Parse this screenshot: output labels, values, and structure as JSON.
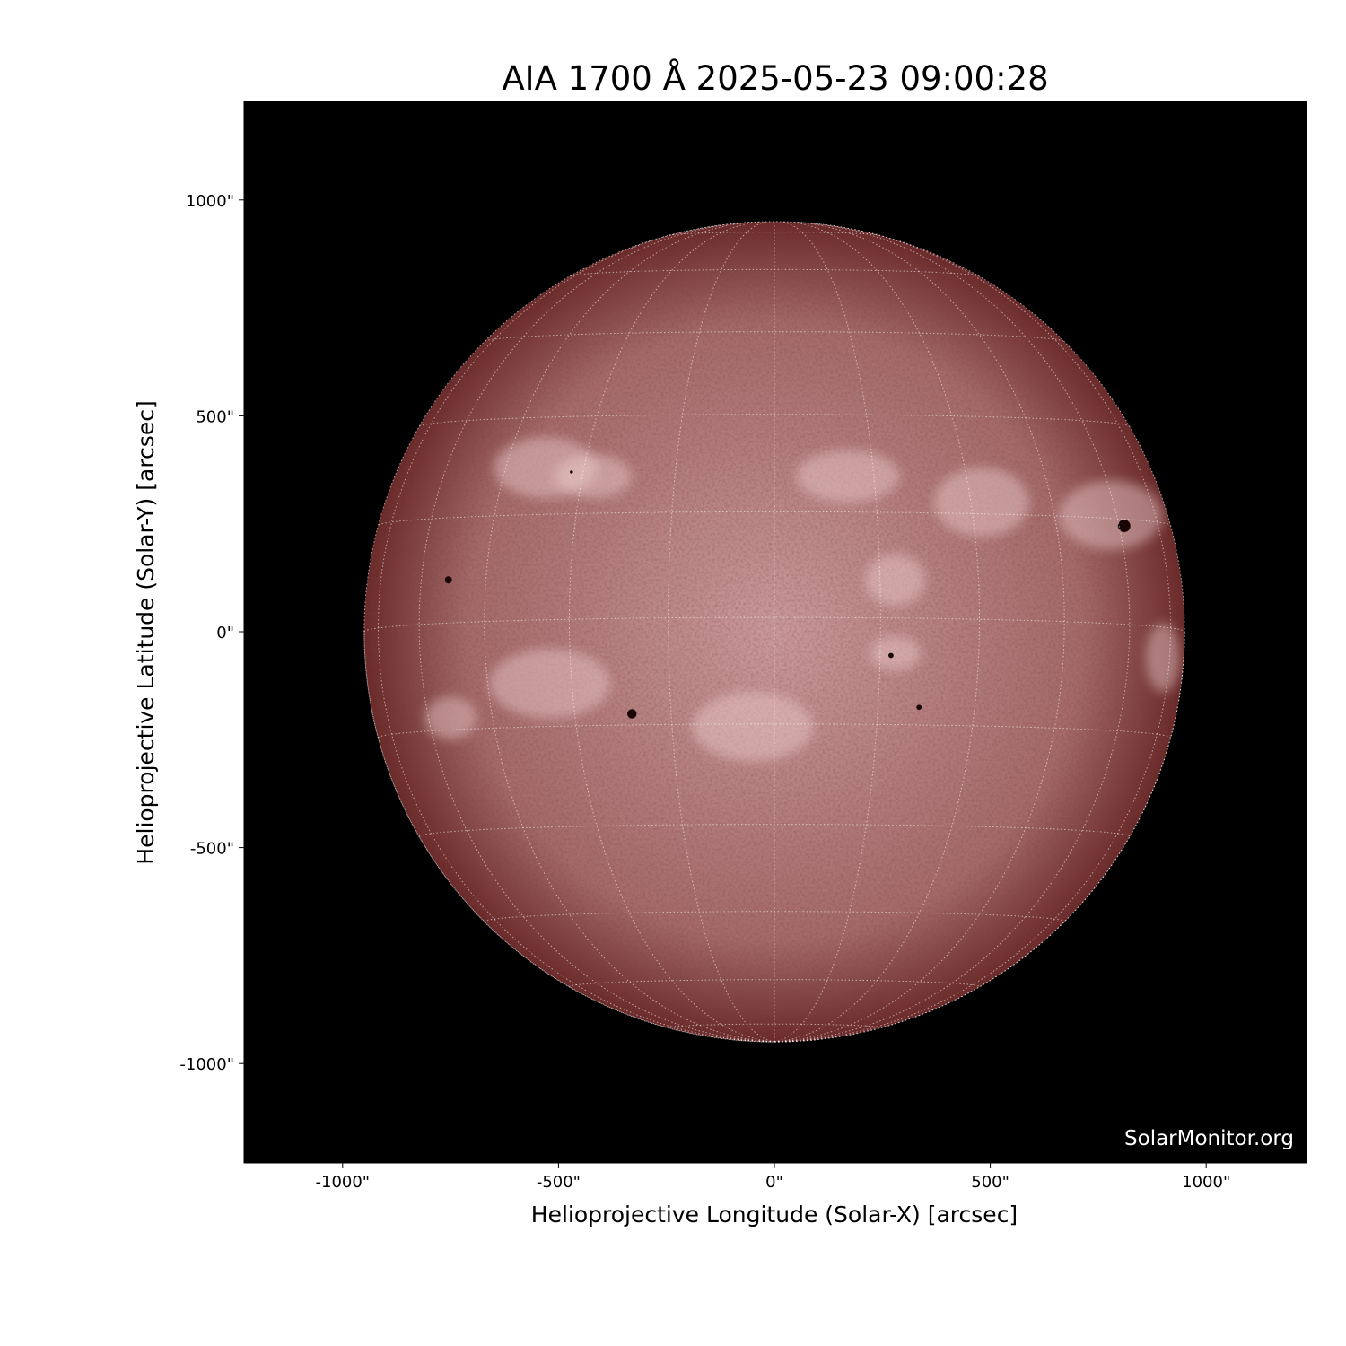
{
  "chart_data": {
    "type": "heatmap",
    "title": "AIA 1700 Å 2025-05-23 09:00:28",
    "xlabel": "Helioprojective Longitude (Solar-X) [arcsec]",
    "ylabel": "Helioprojective Latitude (Solar-Y) [arcsec]",
    "xlim": [
      -1230,
      1230
    ],
    "ylim": [
      -1230,
      1230
    ],
    "xticks": [
      -1000,
      -500,
      0,
      500,
      1000
    ],
    "yticks": [
      1000,
      500,
      0,
      -500,
      -1000
    ],
    "xtick_labels": [
      "-1000\"",
      "-500\"",
      "0\"",
      "500\"",
      "1000\""
    ],
    "ytick_labels": [
      "1000\"",
      "500\"",
      "0\"",
      "-500\"",
      "-1000\""
    ],
    "solar_radius_arcsec": 950,
    "grid_spacing_deg": 15,
    "background_color": "#000000",
    "disk_colors": [
      "#c99a9a",
      "#a46a6a",
      "#6a2a2a"
    ],
    "sunspots": [
      {
        "x": 810,
        "y": 245,
        "r": 12
      },
      {
        "x": -755,
        "y": 120,
        "r": 7
      },
      {
        "x": -330,
        "y": -190,
        "r": 9
      },
      {
        "x": 270,
        "y": -55,
        "r": 5
      },
      {
        "x": 335,
        "y": -175,
        "r": 5
      },
      {
        "x": -470,
        "y": 370,
        "r": 3
      }
    ],
    "plage_regions": [
      {
        "x": -530,
        "y": 380,
        "rx": 120,
        "ry": 70
      },
      {
        "x": -420,
        "y": 360,
        "rx": 90,
        "ry": 50
      },
      {
        "x": 480,
        "y": 300,
        "rx": 110,
        "ry": 80
      },
      {
        "x": 780,
        "y": 270,
        "rx": 120,
        "ry": 80
      },
      {
        "x": -520,
        "y": -120,
        "rx": 140,
        "ry": 80
      },
      {
        "x": 280,
        "y": 120,
        "rx": 70,
        "ry": 60
      },
      {
        "x": 280,
        "y": -50,
        "rx": 60,
        "ry": 40
      },
      {
        "x": -50,
        "y": -220,
        "rx": 140,
        "ry": 80
      },
      {
        "x": 170,
        "y": 360,
        "rx": 120,
        "ry": 60
      },
      {
        "x": -750,
        "y": -200,
        "rx": 60,
        "ry": 50
      },
      {
        "x": 900,
        "y": -60,
        "rx": 40,
        "ry": 80
      }
    ]
  },
  "credit": "SolarMonitor.org"
}
